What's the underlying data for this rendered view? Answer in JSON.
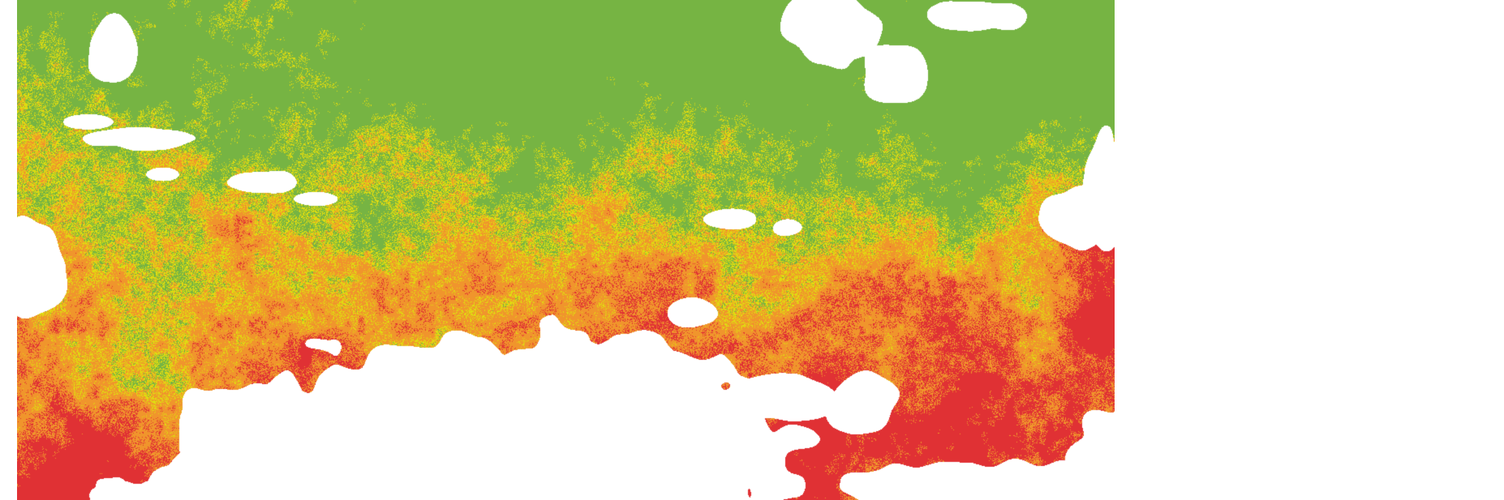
{
  "map": {
    "kind": "classified raster",
    "classes": [
      {
        "color": "#76b443"
      },
      {
        "color": "#e0dc10"
      },
      {
        "color": "#f0952c"
      },
      {
        "color": "#e03134"
      }
    ],
    "no_data_color": "#ffffff"
  }
}
